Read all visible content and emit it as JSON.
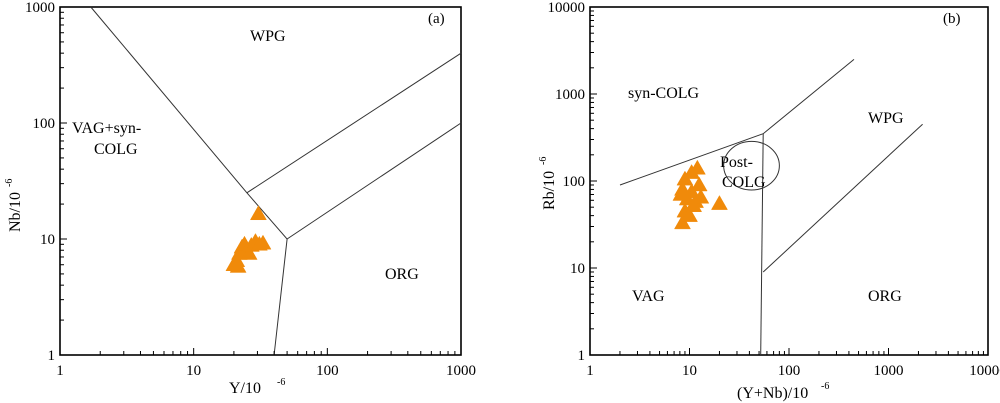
{
  "chart_data": [
    {
      "type": "scatter",
      "panel": "(a)",
      "xscale": "log",
      "yscale": "log",
      "xlim": [
        1,
        1000
      ],
      "ylim": [
        1,
        1000
      ],
      "xlabel": "Y/10",
      "xlabel_sup": "-6",
      "ylabel": "Nb/10",
      "ylabel_sup": "-6",
      "xticks": [
        "1",
        "10",
        "100",
        "1000"
      ],
      "yticks": [
        "1",
        "10",
        "100",
        "1000"
      ],
      "fields": [
        "WPG",
        "VAG+syn-",
        "COLG",
        "ORG"
      ],
      "boundaries": [
        [
          [
            1.7,
            1000
          ],
          [
            25,
            25
          ],
          [
            50,
            10
          ],
          [
            40,
            1
          ]
        ],
        [
          [
            50,
            10
          ],
          [
            1000,
            100
          ]
        ],
        [
          [
            25,
            25
          ],
          [
            1000,
            400
          ]
        ]
      ],
      "marker": "triangle",
      "marker_color": "#f08a0a",
      "points": [
        [
          30.5,
          16.5
        ],
        [
          20,
          6
        ],
        [
          21,
          6.5
        ],
        [
          22,
          7.5
        ],
        [
          23,
          8.5
        ],
        [
          24,
          9
        ],
        [
          25,
          8
        ],
        [
          26,
          7.5
        ],
        [
          27,
          8.8
        ],
        [
          29,
          9.5
        ],
        [
          31,
          9
        ],
        [
          33,
          9.2
        ],
        [
          21.5,
          5.8
        ]
      ]
    },
    {
      "type": "scatter",
      "panel": "(b)",
      "xscale": "log",
      "yscale": "log",
      "xlim": [
        1,
        10000
      ],
      "ylim": [
        1,
        10000
      ],
      "xlabel": "(Y+Nb)/10",
      "xlabel_sup": "-6",
      "ylabel": "Rb/10",
      "ylabel_sup": "-6",
      "xticks": [
        "1",
        "10",
        "100",
        "1000",
        "10000"
      ],
      "yticks": [
        "1",
        "10",
        "100",
        "1000",
        "10000"
      ],
      "fields": [
        "syn-COLG",
        "WPG",
        "Post-",
        "COLG",
        "VAG",
        "ORG"
      ],
      "boundaries": [
        [
          [
            2,
            90
          ],
          [
            55,
            350
          ],
          [
            450,
            2500
          ]
        ],
        [
          [
            55,
            350
          ],
          [
            52,
            1
          ]
        ],
        [
          [
            55,
            9
          ],
          [
            2200,
            450
          ]
        ]
      ],
      "circle": {
        "center": [
          42,
          150
        ],
        "radius_log": 0.28
      },
      "marker": "triangle",
      "marker_color": "#f08a0a",
      "points": [
        [
          12,
          140
        ],
        [
          10.5,
          125
        ],
        [
          9,
          105
        ],
        [
          8.5,
          80
        ],
        [
          8.2,
          70
        ],
        [
          9.5,
          62
        ],
        [
          10.5,
          75
        ],
        [
          11.5,
          58
        ],
        [
          12.5,
          90
        ],
        [
          13,
          65
        ],
        [
          9,
          45
        ],
        [
          8.5,
          33
        ],
        [
          20,
          55
        ],
        [
          11,
          52
        ],
        [
          10,
          40
        ]
      ]
    }
  ]
}
